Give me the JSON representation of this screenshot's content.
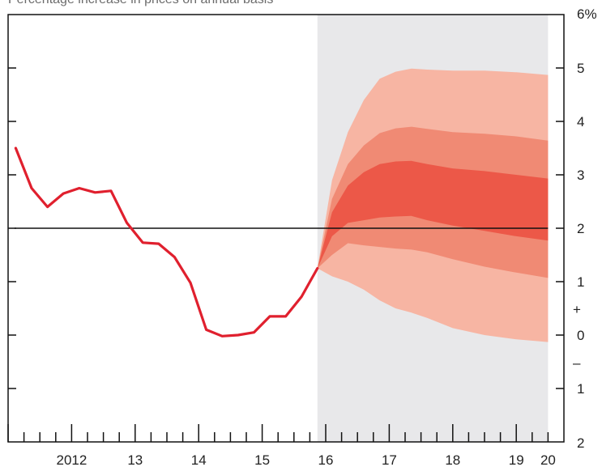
{
  "chart_data": {
    "type": "area",
    "title": "Percentage increase in prices on annual basis",
    "xlabel": "",
    "ylabel": "",
    "x_tick_labels": [
      "2012",
      "13",
      "14",
      "15",
      "16",
      "17",
      "18",
      "19",
      "20"
    ],
    "x_tick_positions": [
      2012.5,
      2013.5,
      2014.5,
      2015.5,
      2016.5,
      2017.5,
      2018.5,
      2019.5,
      2020.0
    ],
    "xlim": [
      2011.5,
      2020.25
    ],
    "ylim": [
      -2,
      6
    ],
    "y_ticks": [
      {
        "value": 6,
        "label": "6%"
      },
      {
        "value": 5,
        "label": "5"
      },
      {
        "value": 4,
        "label": "4"
      },
      {
        "value": 3,
        "label": "3"
      },
      {
        "value": 2,
        "label": "2"
      },
      {
        "value": 1,
        "label": "1"
      },
      {
        "value": 0,
        "label": "0"
      },
      {
        "value": -1,
        "label": "1"
      },
      {
        "value": -2,
        "label": "2"
      }
    ],
    "sign_markers": {
      "plus": "+",
      "minus": "–"
    },
    "target_line": 2,
    "forecast_start": 2016.37,
    "forecast_end": 2020.0,
    "colors": {
      "history_line": "#e0202e",
      "target_line": "#111111",
      "forecast_region": "#e8e8ea",
      "band_outer": "#f7b5a3",
      "band_middle": "#f08a74",
      "band_inner": "#ec5848",
      "axis": "#111111"
    },
    "series": [
      {
        "kind": "history",
        "x": [
          2011.62,
          2011.87,
          2012.12,
          2012.37,
          2012.62,
          2012.87,
          2013.12,
          2013.37,
          2013.62,
          2013.87,
          2014.12,
          2014.37,
          2014.62,
          2014.87,
          2015.12,
          2015.37,
          2015.62,
          2015.87,
          2016.12,
          2016.37
        ],
        "y": [
          3.5,
          2.75,
          2.4,
          2.65,
          2.75,
          2.67,
          2.7,
          2.1,
          1.73,
          1.71,
          1.46,
          0.98,
          0.1,
          -0.02,
          0.0,
          0.05,
          0.35,
          0.35,
          0.72,
          1.25
        ]
      }
    ],
    "fan_bands": {
      "x": [
        2016.37,
        2016.6,
        2016.85,
        2017.1,
        2017.35,
        2017.6,
        2017.85,
        2018.1,
        2018.5,
        2019.0,
        2019.5,
        2020.0
      ],
      "outer_upper": [
        1.25,
        2.9,
        3.8,
        4.4,
        4.8,
        4.93,
        4.99,
        4.97,
        4.95,
        4.95,
        4.92,
        4.87
      ],
      "middle_upper": [
        1.25,
        2.55,
        3.2,
        3.55,
        3.78,
        3.87,
        3.9,
        3.86,
        3.8,
        3.77,
        3.72,
        3.64
      ],
      "inner_upper": [
        1.25,
        2.3,
        2.8,
        3.05,
        3.2,
        3.25,
        3.26,
        3.2,
        3.12,
        3.07,
        3.0,
        2.93
      ],
      "inner_lower": [
        1.25,
        1.85,
        2.1,
        2.15,
        2.2,
        2.22,
        2.23,
        2.15,
        2.05,
        1.95,
        1.85,
        1.77
      ],
      "middle_lower": [
        1.25,
        1.5,
        1.72,
        1.68,
        1.65,
        1.62,
        1.6,
        1.55,
        1.42,
        1.28,
        1.17,
        1.07
      ],
      "outer_lower": [
        1.25,
        1.1,
        1.0,
        0.85,
        0.65,
        0.5,
        0.42,
        0.32,
        0.13,
        0.0,
        -0.08,
        -0.13
      ]
    },
    "grid": false,
    "legend": "none"
  }
}
